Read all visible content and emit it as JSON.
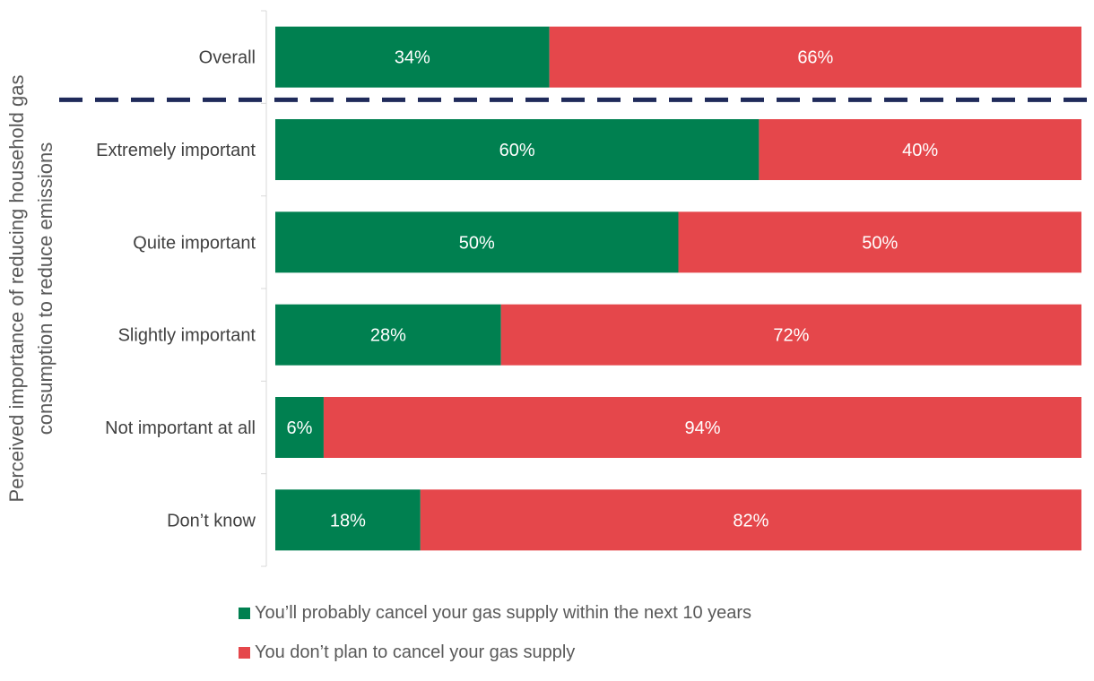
{
  "chart_data": {
    "type": "bar",
    "orientation": "horizontal",
    "stacked": true,
    "percent": true,
    "categories": [
      "Overall",
      "Extremely important",
      "Quite important",
      "Slightly important",
      "Not important at all",
      "Don’t know"
    ],
    "series": [
      {
        "name": "You’ll probably cancel your gas supply within the next 10 years",
        "color": "#008050",
        "values": [
          34,
          60,
          50,
          28,
          6,
          18
        ]
      },
      {
        "name": "You don’t plan to cancel your gas supply",
        "color": "#e5474b",
        "values": [
          66,
          40,
          50,
          72,
          94,
          82
        ]
      }
    ],
    "data_labels": [
      [
        "34%",
        "60%",
        "50%",
        "28%",
        "6%",
        "18%"
      ],
      [
        "66%",
        "40%",
        "50%",
        "72%",
        "94%",
        "82%"
      ]
    ],
    "ylabel": "Perceived importance of reducing household gas consumption to reduce emissions",
    "ylabel_lines": [
      "Perceived importance of reducing household gas",
      "consumption to reduce emissions"
    ],
    "xlim": [
      0,
      100
    ],
    "divider": {
      "after_category": "Overall",
      "style": "dashed",
      "color": "#1f2a5a"
    },
    "legend_position": "bottom",
    "grid": false
  }
}
